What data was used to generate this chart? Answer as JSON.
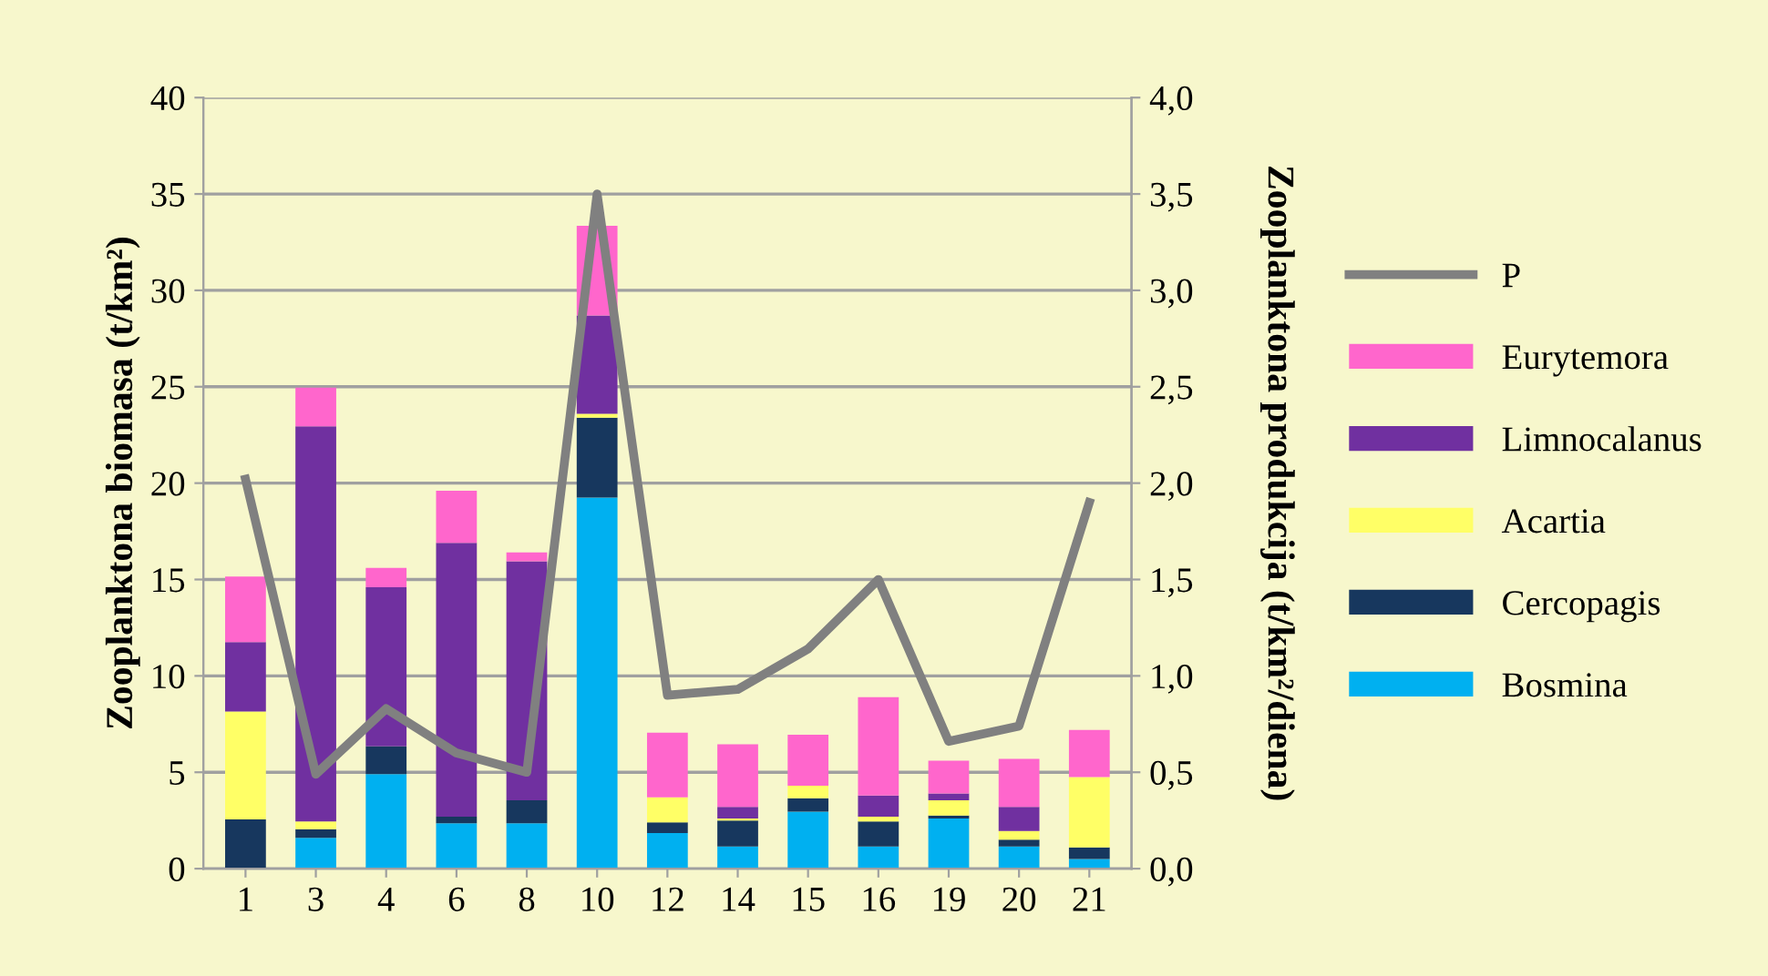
{
  "chart_data": {
    "type": "bar",
    "stacked": true,
    "ylabel": "Zooplanktona biomasa (t/km²)",
    "y2label": "Zooplanktona produkcija (t/km²/diena)",
    "categories": [
      "1",
      "3",
      "4",
      "6",
      "8",
      "10",
      "12",
      "14",
      "15",
      "16",
      "19",
      "20",
      "21"
    ],
    "series": [
      {
        "name": "Bosmina",
        "color": "#00b0f0",
        "values": [
          0,
          1.6,
          4.9,
          2.35,
          2.35,
          19.25,
          1.85,
          1.15,
          2.95,
          1.15,
          2.6,
          1.15,
          0.5
        ]
      },
      {
        "name": "Cercopagis",
        "color": "#17375e",
        "values": [
          2.55,
          0.45,
          1.45,
          0.35,
          1.2,
          4.15,
          0.55,
          1.35,
          0.7,
          1.3,
          0.15,
          0.35,
          0.6
        ]
      },
      {
        "name": "Acartia",
        "color": "#ffff66",
        "values": [
          5.6,
          0.4,
          0,
          0,
          0,
          0.2,
          1.3,
          0.1,
          0.65,
          0.25,
          0.8,
          0.45,
          3.65
        ]
      },
      {
        "name": "Limnocalanus",
        "color": "#7030a0",
        "values": [
          3.6,
          20.5,
          8.25,
          14.2,
          12.4,
          5.1,
          0,
          0.6,
          0,
          1.1,
          0.35,
          1.25,
          0
        ]
      },
      {
        "name": "Eurytemora",
        "color": "#ff66cc",
        "values": [
          3.4,
          2.0,
          1.0,
          2.7,
          0.45,
          4.65,
          3.35,
          3.25,
          2.65,
          5.1,
          1.7,
          2.5,
          2.45
        ]
      },
      {
        "name": "P",
        "type": "line",
        "axis": "y2",
        "color": "#808080",
        "values": [
          2.02,
          0.49,
          0.83,
          0.6,
          0.5,
          3.5,
          0.9,
          0.93,
          1.14,
          1.5,
          0.66,
          0.74,
          1.9
        ]
      }
    ],
    "ylim": [
      0,
      40
    ],
    "yticks": [
      0,
      5,
      10,
      15,
      20,
      25,
      30,
      35,
      40
    ],
    "y2lim": [
      0,
      4
    ],
    "y2ticks": [
      {
        "value": 0,
        "label": "0,0"
      },
      {
        "value": 0.5,
        "label": "0,5"
      },
      {
        "value": 1,
        "label": "1,0"
      },
      {
        "value": 1.5,
        "label": "1,5"
      },
      {
        "value": 2,
        "label": "2,0"
      },
      {
        "value": 2.5,
        "label": "2,5"
      },
      {
        "value": 3,
        "label": "3,0"
      },
      {
        "value": 3.5,
        "label": "3,5"
      },
      {
        "value": 4,
        "label": "4,0"
      }
    ],
    "grid": "y",
    "legend": "right",
    "marker": "none",
    "line_style": "solid"
  }
}
